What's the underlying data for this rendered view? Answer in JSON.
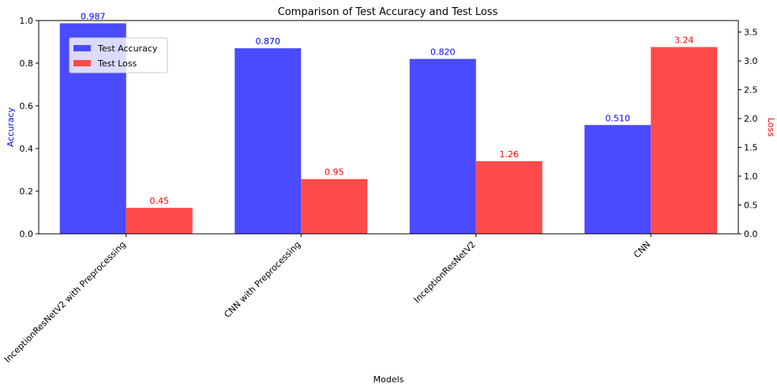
{
  "chart_data": {
    "type": "bar",
    "title": "Comparison of Test Accuracy and Test Loss",
    "xlabel": "Models",
    "ylabel_left": "Accuracy",
    "ylabel_right": "Loss",
    "categories": [
      "InceptionResNetV2 with Preprocessing",
      "CNN with Preprocessing",
      "InceptionResNetV2",
      "CNN"
    ],
    "series": [
      {
        "name": "Test Accuracy",
        "axis": "left",
        "color": "#4a4aff",
        "values": [
          0.987,
          0.87,
          0.82,
          0.51
        ],
        "labels": [
          "0.987",
          "0.870",
          "0.820",
          "0.510"
        ]
      },
      {
        "name": "Test Loss",
        "axis": "right",
        "color": "#ff4a4a",
        "values": [
          0.45,
          0.95,
          1.26,
          3.24
        ],
        "labels": [
          "0.45",
          "0.95",
          "1.26",
          "3.24"
        ]
      }
    ],
    "ylim_left": [
      0,
      1.0
    ],
    "ylim_right": [
      0,
      3.7
    ],
    "yticks_left": [
      "0.0",
      "0.2",
      "0.4",
      "0.6",
      "0.8",
      "1.0"
    ],
    "yticks_right": [
      "0.0",
      "0.5",
      "1.0",
      "1.5",
      "2.0",
      "2.5",
      "3.0",
      "3.5"
    ],
    "left_label_color": "#0000ff",
    "right_label_color": "#ff0000",
    "grid": false,
    "legend_position": "upper-left"
  }
}
